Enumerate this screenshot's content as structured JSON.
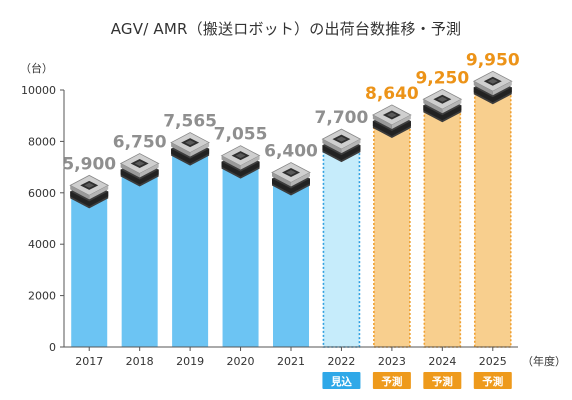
{
  "chart_data": {
    "type": "bar",
    "title": "AGV/ AMR（搬送ロボット）の出荷台数推移・予測",
    "ylabel": "（台）",
    "xlabel": "（年度）",
    "ylim": [
      0,
      10000
    ],
    "yticks": [
      0,
      2000,
      4000,
      6000,
      8000,
      10000
    ],
    "ytick_labels": [
      "0",
      "2000",
      "4000",
      "6000",
      "8000",
      "10000"
    ],
    "grid": false,
    "categories": [
      "2017",
      "2018",
      "2019",
      "2020",
      "2021",
      "2022",
      "2023",
      "2024",
      "2025"
    ],
    "values": [
      5900,
      6750,
      7565,
      7055,
      6400,
      7700,
      8640,
      9250,
      9950
    ],
    "value_labels": [
      "5,900",
      "6,750",
      "7,565",
      "7,055",
      "6,400",
      "7,700",
      "8,640",
      "9,250",
      "9,950"
    ],
    "status": [
      "actual",
      "actual",
      "actual",
      "actual",
      "actual",
      "estimate",
      "forecast",
      "forecast",
      "forecast"
    ],
    "status_badges": [
      "",
      "",
      "",
      "",
      "",
      "見込",
      "予測",
      "予測",
      "予測"
    ]
  },
  "colors": {
    "actual": "#6cc4f3",
    "estimate_fill": "#c6ecfb",
    "estimate_border": "#2f9fe0",
    "forecast_fill": "#f8cf8e",
    "forecast_border": "#f0a030",
    "actual_label": "#8f8f8f",
    "forecast_label": "#ec9318",
    "estimate_badge": "#2fa8e8",
    "forecast_badge": "#ee9a1c"
  }
}
